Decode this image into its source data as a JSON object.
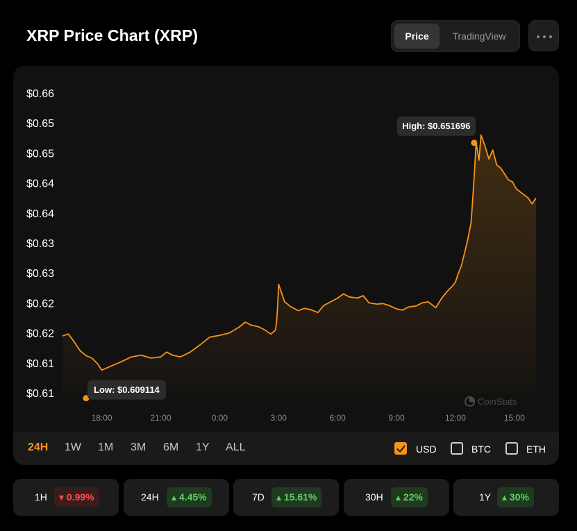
{
  "header": {
    "title": "XRP Price Chart (XRP)",
    "tabs": [
      {
        "label": "Price",
        "active": true
      },
      {
        "label": "TradingView",
        "active": false
      }
    ],
    "more_icon": "more-horizontal-icon"
  },
  "chart_data": {
    "type": "area",
    "y_tick_labels": [
      "$0.66",
      "$0.65",
      "$0.65",
      "$0.64",
      "$0.64",
      "$0.63",
      "$0.63",
      "$0.62",
      "$0.62",
      "$0.61",
      "$0.61"
    ],
    "y_ticks": [
      0.66,
      0.655,
      0.65,
      0.645,
      0.64,
      0.635,
      0.63,
      0.625,
      0.62,
      0.615,
      0.61
    ],
    "x_tick_labels": [
      "18:00",
      "21:00",
      "0:00",
      "3:00",
      "6:00",
      "9:00",
      "12:00",
      "15:00"
    ],
    "x_ticks_hours": [
      18,
      21,
      24,
      27,
      30,
      33,
      36,
      39
    ],
    "ylim": [
      0.61,
      0.66
    ],
    "xlim_hours": [
      16,
      40.1
    ],
    "line_color": "#f7931a",
    "series": [
      {
        "x_hours": [
          16,
          16.3,
          16.6,
          16.9,
          17.2,
          17.5,
          17.8,
          18,
          18.5,
          19,
          19.5,
          20,
          20.5,
          21,
          21.3,
          21.6,
          22,
          22.5,
          23,
          23.5,
          24,
          24.5,
          25,
          25.3,
          25.6,
          26,
          26.3,
          26.6,
          26.85,
          26.9,
          26.95,
          27,
          27.3,
          27.6,
          28,
          28.3,
          28.6,
          29,
          29.3,
          29.6,
          30,
          30.3,
          30.6,
          31,
          31.3,
          31.6,
          32,
          32.3,
          32.6,
          33,
          33.3,
          33.6,
          34,
          34.3,
          34.6,
          35,
          35.3,
          35.6,
          35.9,
          36,
          36.1,
          36.3,
          36.6,
          36.8,
          36.95,
          37.05,
          37.2,
          37.3,
          37.5,
          37.7,
          37.9,
          38.1,
          38.3,
          38.5,
          38.7,
          38.9,
          39.1,
          39.3,
          39.5,
          39.7,
          39.9,
          40.1
        ],
        "values": [
          0.6195,
          0.6198,
          0.6185,
          0.617,
          0.6162,
          0.6158,
          0.6148,
          0.6138,
          0.6145,
          0.6152,
          0.616,
          0.6163,
          0.6158,
          0.616,
          0.6168,
          0.6163,
          0.616,
          0.6168,
          0.618,
          0.6193,
          0.6196,
          0.62,
          0.621,
          0.6218,
          0.6213,
          0.621,
          0.6205,
          0.6198,
          0.6205,
          0.6221,
          0.6246,
          0.6281,
          0.6252,
          0.6244,
          0.6237,
          0.6241,
          0.6239,
          0.6234,
          0.6246,
          0.6251,
          0.6258,
          0.6265,
          0.626,
          0.6258,
          0.6262,
          0.625,
          0.6248,
          0.6249,
          0.6246,
          0.624,
          0.6238,
          0.6243,
          0.6245,
          0.625,
          0.6252,
          0.6242,
          0.6258,
          0.627,
          0.628,
          0.6285,
          0.6295,
          0.6312,
          0.6352,
          0.6385,
          0.646,
          0.6517,
          0.6488,
          0.653,
          0.6512,
          0.649,
          0.6505,
          0.648,
          0.6475,
          0.6465,
          0.6455,
          0.6452,
          0.644,
          0.6435,
          0.643,
          0.6425,
          0.6415,
          0.6425
        ]
      }
    ],
    "annotations": {
      "high": {
        "label": "High: $0.651696",
        "x_hours": 36.95,
        "value": 0.651696
      },
      "low": {
        "label": "Low: $0.609114",
        "x_hours": 17.2,
        "value": 0.609114
      }
    },
    "watermark": "CoinStats"
  },
  "ranges": [
    {
      "label": "24H",
      "active": true
    },
    {
      "label": "1W"
    },
    {
      "label": "1M"
    },
    {
      "label": "3M"
    },
    {
      "label": "6M"
    },
    {
      "label": "1Y"
    },
    {
      "label": "ALL"
    }
  ],
  "currencies": [
    {
      "label": "USD",
      "checked": true
    },
    {
      "label": "BTC",
      "checked": false
    },
    {
      "label": "ETH",
      "checked": false
    }
  ],
  "stats": [
    {
      "label": "1H",
      "change": "0.99%",
      "direction": "down"
    },
    {
      "label": "24H",
      "change": "4.45%",
      "direction": "up"
    },
    {
      "label": "7D",
      "change": "15.61%",
      "direction": "up"
    },
    {
      "label": "30H",
      "change": "22%",
      "direction": "up"
    },
    {
      "label": "1Y",
      "change": "30%",
      "direction": "up"
    }
  ]
}
